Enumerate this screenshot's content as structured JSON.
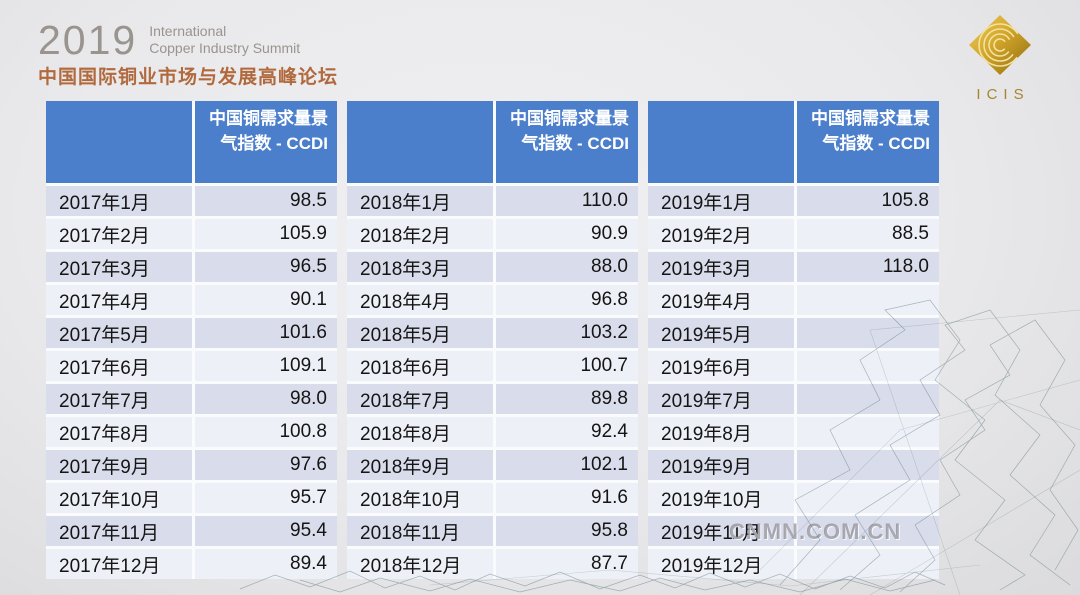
{
  "slide": {
    "year": "2019",
    "title_en_line1": "International",
    "title_en_line2": "Copper Industry Summit",
    "title_cn": "中国国际铜业市场与发展高峰论坛",
    "logo_text": "ICIS",
    "watermark": "CNMN.COM.CN"
  },
  "colors": {
    "header_blue": "#4b7ecb",
    "row_dark": "#d9dcea",
    "row_light": "#eef0f7",
    "title_gray": "#9a948e",
    "title_copper": "#b16a3e",
    "logo_gold": "#c9a129"
  },
  "tables": [
    {
      "header": "中国铜需求量景气指数 - CCDI",
      "rows": [
        {
          "month": "2017年1月",
          "value": "98.5"
        },
        {
          "month": "2017年2月",
          "value": "105.9"
        },
        {
          "month": "2017年3月",
          "value": "96.5"
        },
        {
          "month": "2017年4月",
          "value": "90.1"
        },
        {
          "month": "2017年5月",
          "value": "101.6"
        },
        {
          "month": "2017年6月",
          "value": "109.1"
        },
        {
          "month": "2017年7月",
          "value": "98.0"
        },
        {
          "month": "2017年8月",
          "value": "100.8"
        },
        {
          "month": "2017年9月",
          "value": "97.6"
        },
        {
          "month": "2017年10月",
          "value": "95.7"
        },
        {
          "month": "2017年11月",
          "value": "95.4"
        },
        {
          "month": "2017年12月",
          "value": "89.4"
        }
      ]
    },
    {
      "header": "中国铜需求量景气指数 - CCDI",
      "rows": [
        {
          "month": "2018年1月",
          "value": "110.0"
        },
        {
          "month": "2018年2月",
          "value": "90.9"
        },
        {
          "month": "2018年3月",
          "value": "88.0"
        },
        {
          "month": "2018年4月",
          "value": "96.8"
        },
        {
          "month": "2018年5月",
          "value": "103.2"
        },
        {
          "month": "2018年6月",
          "value": "100.7"
        },
        {
          "month": "2018年7月",
          "value": "89.8"
        },
        {
          "month": "2018年8月",
          "value": "92.4"
        },
        {
          "month": "2018年9月",
          "value": "102.1"
        },
        {
          "month": "2018年10月",
          "value": "91.6"
        },
        {
          "month": "2018年11月",
          "value": "95.8"
        },
        {
          "month": "2018年12月",
          "value": "87.7"
        }
      ]
    },
    {
      "header": "中国铜需求量景气指数 - CCDI",
      "rows": [
        {
          "month": "2019年1月",
          "value": "105.8"
        },
        {
          "month": "2019年2月",
          "value": "88.5"
        },
        {
          "month": "2019年3月",
          "value": "118.0"
        },
        {
          "month": "2019年4月",
          "value": ""
        },
        {
          "month": "2019年5月",
          "value": ""
        },
        {
          "month": "2019年6月",
          "value": ""
        },
        {
          "month": "2019年7月",
          "value": ""
        },
        {
          "month": "2019年8月",
          "value": ""
        },
        {
          "month": "2019年9月",
          "value": ""
        },
        {
          "month": "2019年10月",
          "value": ""
        },
        {
          "month": "2019年11月",
          "value": ""
        },
        {
          "month": "2019年12月",
          "value": ""
        }
      ]
    }
  ]
}
